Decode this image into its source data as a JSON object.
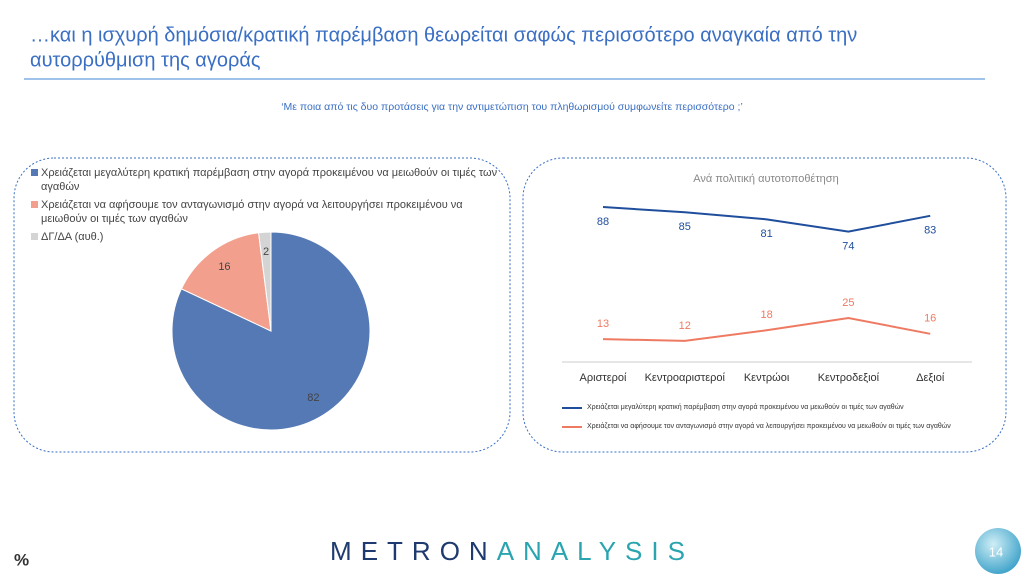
{
  "header": {
    "title_line1": "…και η ισχυρή δημόσια/κρατική παρέμβαση θεωρείται σαφώς περισσότερο αναγκαία από την",
    "title_line2": "αυτορρύθμιση της αγοράς",
    "question": "‘Με ποια από τις δυο προτάσεις για την αντιμετώπιση του πληθωρισμού συμφωνείτε περισσότερο ;’"
  },
  "chart_data": [
    {
      "type": "pie",
      "categories": [
        "Χρειάζεται μεγαλύτερη κρατική παρέμβαση στην αγορά προκειμένου να μειωθούν οι τιμές των αγαθών",
        "Χρειάζεται να αφήσουμε τον ανταγωνισμό στην αγορά να λειτουργήσει προκειμένου να μειωθούν οι τιμές των αγαθών",
        "ΔΓ/ΔΑ (αυθ.)"
      ],
      "values": [
        82,
        16,
        2
      ],
      "colors": [
        "#5479b5",
        "#f2a08d",
        "#d4d4d4"
      ],
      "legend": "top"
    },
    {
      "type": "line",
      "title": "Ανά πολιτική αυτοτοποθέτηση",
      "categories": [
        "Αριστεροί",
        "Κεντροαριστεροί",
        "Κεντρώοι",
        "Κεντροδεξιοί",
        "Δεξιοί"
      ],
      "series": [
        {
          "name": "Χρειάζεται μεγαλύτερη κρατική παρέμβαση στην αγορά προκειμένου να μειωθούν οι τιμές των αγαθών",
          "color": "#1f4e9c",
          "values": [
            88,
            85,
            81,
            74,
            83
          ]
        },
        {
          "name": "Χρειάζεται να αφήσουμε τον ανταγωνισμό στην αγορά να λειτουργήσει προκειμένου να μειωθούν οι τιμές των αγαθών",
          "color": "#ef7a62",
          "values": [
            13,
            12,
            18,
            25,
            16
          ]
        }
      ],
      "legend": "bottom"
    }
  ],
  "footer": {
    "unit": "%",
    "logo_part1": "METRON",
    "logo_part2": "ANALYSIS",
    "page": "14"
  }
}
